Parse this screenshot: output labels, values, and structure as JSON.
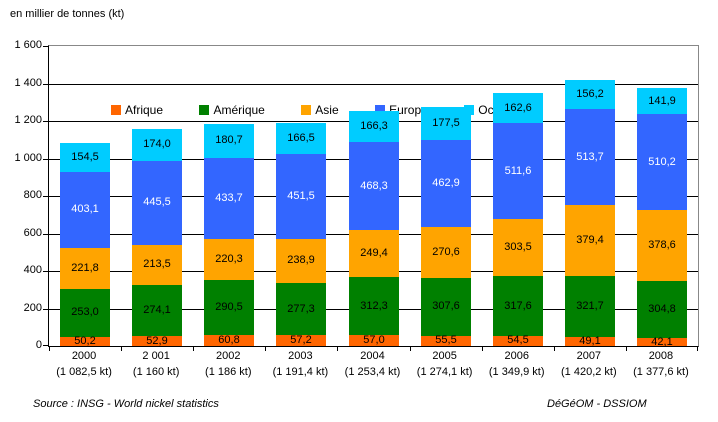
{
  "title": "en millier de tonnes (kt)",
  "footer": {
    "source": "Source : INSG - World nickel statistics",
    "credit": "DéGéOM - DSSIOM"
  },
  "chart_data": {
    "type": "bar",
    "stacked": true,
    "title": "en millier de tonnes (kt)",
    "xlabel": "",
    "ylabel": "en millier de tonnes (kt)",
    "ylim": [
      0,
      1600
    ],
    "ytick_step": 200,
    "ytick_labels": [
      "0",
      "200",
      "400",
      "600",
      "800",
      "1 000",
      "1 200",
      "1 400",
      "1 600"
    ],
    "grid": true,
    "legend_position": "top",
    "categories": [
      "2000",
      "2 001",
      "2002",
      "2003",
      "2004",
      "2005",
      "2006",
      "2007",
      "2008"
    ],
    "category_totals": [
      "(1 082,5 kt)",
      "(1 160 kt)",
      "(1 186 kt)",
      "(1 191,4 kt)",
      "(1 253,4 kt)",
      "(1 274,1 kt)",
      "(1 349,9 kt)",
      "(1 420,2 kt)",
      "(1 377,6 kt)"
    ],
    "series": [
      {
        "name": "Afrique",
        "color": "#FF6600",
        "label_color": "#000000",
        "values": [
          50.2,
          52.9,
          60.8,
          57.2,
          57.0,
          55.5,
          54.5,
          49.1,
          42.1
        ]
      },
      {
        "name": "Amérique",
        "color": "#008000",
        "label_color": "#000000",
        "values": [
          253.0,
          274.1,
          290.5,
          277.3,
          312.3,
          307.6,
          317.6,
          321.7,
          304.8
        ]
      },
      {
        "name": "Asie",
        "color": "#FFA400",
        "label_color": "#000000",
        "values": [
          221.8,
          213.5,
          220.3,
          238.9,
          249.4,
          270.6,
          303.5,
          379.4,
          378.6
        ]
      },
      {
        "name": "Europe",
        "color": "#3366FF",
        "label_color": "#FFFFFF",
        "values": [
          403.1,
          445.5,
          433.7,
          451.5,
          468.3,
          462.9,
          511.6,
          513.7,
          510.2
        ]
      },
      {
        "name": "Océanie",
        "color": "#00CCFF",
        "label_color": "#000000",
        "values": [
          154.5,
          174.0,
          180.7,
          166.5,
          166.3,
          177.5,
          162.6,
          156.2,
          141.9
        ]
      }
    ]
  }
}
